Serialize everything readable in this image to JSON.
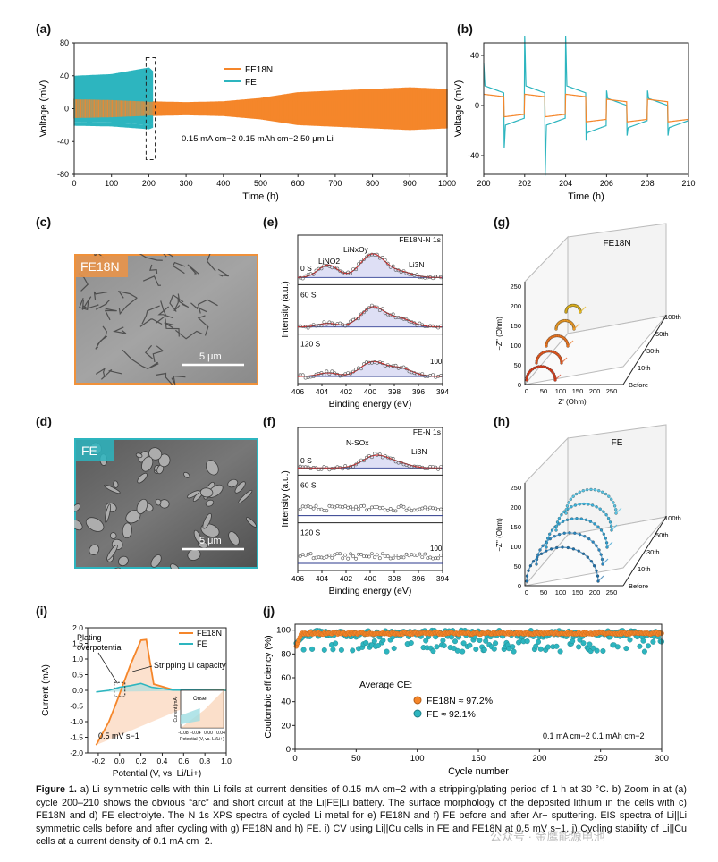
{
  "panel_labels": [
    "(a)",
    "(b)",
    "(c)",
    "(d)",
    "(e)",
    "(f)",
    "(g)",
    "(h)",
    "(i)",
    "(j)"
  ],
  "caption": {
    "figure_label": "Figure 1.",
    "text": " a) Li symmetric cells with thin Li foils at current densities of 0.15 mA cm−2 with a stripping/plating period of 1 h at 30 °C. b) Zoom in at (a) cycle 200–210 shows the obvious “arc” and short circuit at the Li|FE|Li battery. The surface morphology of the deposited lithium in the cells with c) FE18N and d) FE electrolyte. The N 1s XPS spectra of cycled Li metal for e) FE18N and f) FE before and after Ar+ sputtering. EIS spectra of Li||Li symmetric cells before and after cycling with g) FE18N and h) FE. i) CV using Li||Cu cells in FE and FE18N at 0.5 mV s−1. j) Cycling stability of Li||Cu cells at a current density of 0.1 mA cm−2."
  },
  "watermark": "公众号 · 金鹰能源电池",
  "sem": {
    "c": {
      "tag": "FE18N",
      "scale": "5 μm"
    },
    "d": {
      "tag": "FE",
      "scale": "5 μm"
    }
  },
  "eis": {
    "g_title": "FE18N",
    "h_title": "FE",
    "axis_y": "−Z'' (Ohm)",
    "axis_x": "Z' (Ohm)",
    "g_yticks": [
      "0",
      "50",
      "100",
      "150",
      "200",
      "250"
    ],
    "g_xticks": [
      "0",
      "50",
      "100",
      "150",
      "200",
      "250"
    ],
    "h_yticks": [
      "0",
      "50",
      "100",
      "150",
      "200",
      "250"
    ],
    "h_xticks": [
      "0",
      "50",
      "100",
      "150",
      "200",
      "250"
    ],
    "cycles": [
      "Before",
      "10th",
      "30th",
      "50th",
      "100th"
    ]
  },
  "chart_data": [
    {
      "id": "a",
      "type": "line",
      "title": "",
      "xlabel": "Time (h)",
      "ylabel": "Voltage (mV)",
      "xlim": [
        0,
        1000
      ],
      "ylim": [
        -80,
        80
      ],
      "xticks": [
        "0",
        "100",
        "200",
        "300",
        "400",
        "500",
        "600",
        "700",
        "800",
        "900",
        "1000"
      ],
      "yticks": [
        "-80",
        "-40",
        "0",
        "40",
        "80"
      ],
      "series": [
        {
          "name": "FE18N",
          "color": "#f5862a",
          "envelope_h": [
            0,
            100,
            200,
            300,
            400,
            500,
            600,
            700,
            800,
            900,
            1000
          ],
          "envelope_mv": [
            12,
            11,
            9,
            8,
            9,
            13,
            20,
            22,
            24,
            26,
            24
          ]
        },
        {
          "name": "FE",
          "color": "#2db5bf",
          "envelope_h": [
            0,
            100,
            200,
            210
          ],
          "envelope_mv": [
            40,
            42,
            50,
            46
          ]
        }
      ],
      "annotation": "0.15 mA cm−2  0.15 mAh cm−2 50 μm Li",
      "legend": "top-center"
    },
    {
      "id": "b",
      "type": "line",
      "xlabel": "Time (h)",
      "ylabel": "Voltage (mV)",
      "xlim": [
        200,
        210
      ],
      "ylim": [
        -55,
        50
      ],
      "xticks": [
        "200",
        "202",
        "204",
        "206",
        "208",
        "210"
      ],
      "yticks": [
        "-40",
        "0",
        "40"
      ],
      "series": [
        {
          "name": "FE18N",
          "color": "#f5862a"
        },
        {
          "name": "FE",
          "color": "#2db5bf"
        }
      ]
    },
    {
      "id": "e",
      "type": "scatter",
      "title": "FE18N-N 1s",
      "xlabel": "Binding energy (eV)",
      "ylabel": "Intensity (a.u.)",
      "xlim": [
        406,
        394
      ],
      "xticks": [
        "406",
        "404",
        "402",
        "400",
        "398",
        "396",
        "394"
      ],
      "depths": [
        "0 S",
        "60 S",
        "120 S"
      ],
      "peaks": [
        "LiNO2",
        "LiNxOy",
        "Li3N"
      ],
      "scale_label": "100"
    },
    {
      "id": "f",
      "type": "scatter",
      "title": "FE-N 1s",
      "xlabel": "Binding energy (eV)",
      "ylabel": "Intensity (a.u.)",
      "xlim": [
        406,
        394
      ],
      "xticks": [
        "406",
        "404",
        "402",
        "400",
        "398",
        "396",
        "394"
      ],
      "depths": [
        "0 S",
        "60 S",
        "120 S"
      ],
      "peaks": [
        "N-SOx",
        "Li3N"
      ],
      "scale_label": "100"
    },
    {
      "id": "i",
      "type": "line",
      "xlabel": "Potential (V, vs. Li/Li+)",
      "ylabel": "Current (mA)",
      "xlim": [
        -0.3,
        1.0
      ],
      "ylim": [
        -2.0,
        2.0
      ],
      "xticks": [
        "-0.2",
        "0.0",
        "0.2",
        "0.4",
        "0.6",
        "0.8",
        "1.0"
      ],
      "yticks": [
        "-2.0",
        "-1.5",
        "-1.0",
        "-0.5",
        "0.0",
        "0.5",
        "1.0",
        "1.5",
        "2.0"
      ],
      "series": [
        {
          "name": "FE18N",
          "color": "#f5862a",
          "x": [
            -0.22,
            -0.1,
            -0.02,
            0.1,
            0.2,
            0.25,
            0.32,
            0.5,
            1.0
          ],
          "y": [
            -1.75,
            -1.0,
            -0.3,
            0.8,
            1.6,
            1.62,
            0.2,
            0.02,
            0.0
          ]
        },
        {
          "name": "FE",
          "color": "#2db5bf",
          "x": [
            -0.22,
            -0.1,
            0.0,
            0.1,
            0.2,
            0.3,
            0.5,
            1.0
          ],
          "y": [
            -0.05,
            0.0,
            0.1,
            0.15,
            0.22,
            0.1,
            0.01,
            0.0
          ]
        }
      ],
      "annotations": [
        "Plating overpotential",
        "Stripping Li capacity",
        "0.5 mV s−1"
      ],
      "inset": {
        "title": "Onset",
        "xlabel": "Potential (V, vs. Li/Li+)",
        "ylabel": "Current (mA)",
        "xticks": [
          "-0.08",
          "-0.04",
          "0.00",
          "0.04"
        ]
      }
    },
    {
      "id": "j",
      "type": "scatter",
      "xlabel": "Cycle number",
      "ylabel": "Coulombic efficiency (%)",
      "xlim": [
        0,
        300
      ],
      "ylim": [
        0,
        105
      ],
      "xticks": [
        "0",
        "50",
        "100",
        "150",
        "200",
        "250",
        "300"
      ],
      "yticks": [
        "0",
        "20",
        "40",
        "60",
        "80",
        "100"
      ],
      "legend_title": "Average CE:",
      "series": [
        {
          "name": "FE18N ≈ 97.2%",
          "color": "#f5862a",
          "mean": 97.2
        },
        {
          "name": "FE ≈ 92.1%",
          "color": "#2db5bf",
          "mean": 92.1
        }
      ],
      "annotation": "0.1 mA cm−2 0.1 mAh cm−2"
    }
  ]
}
